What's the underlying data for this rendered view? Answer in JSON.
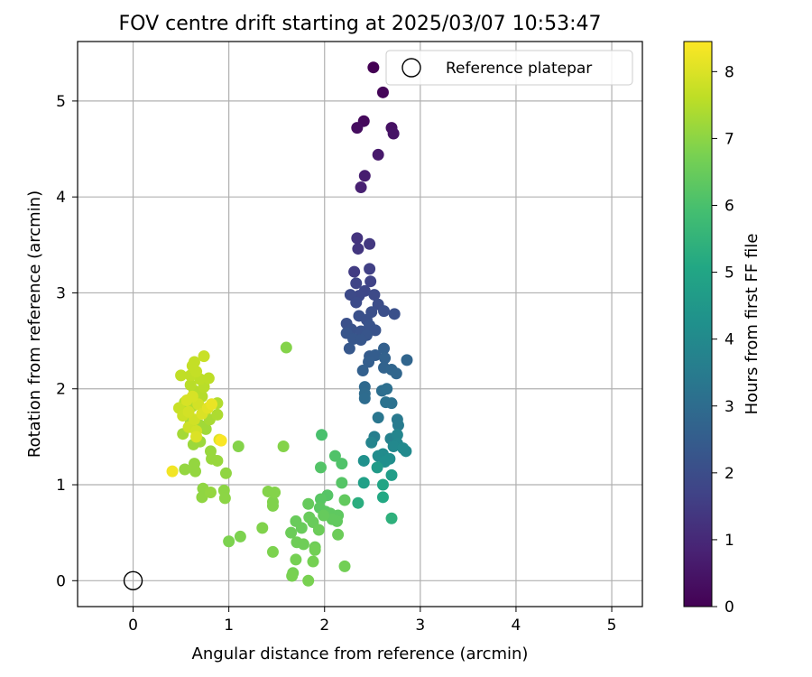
{
  "chart_data": {
    "type": "scatter",
    "title": "FOV centre drift starting at 2025/03/07 10:53:47",
    "xlabel": "Angular distance from reference (arcmin)",
    "ylabel": "Rotation from reference (arcmin)",
    "xlim": [
      -0.58,
      5.32
    ],
    "ylim": [
      -0.27,
      5.62
    ],
    "xticks": [
      0,
      1,
      2,
      3,
      4,
      5
    ],
    "yticks": [
      0,
      1,
      2,
      3,
      4,
      5
    ],
    "grid": true,
    "legend": {
      "location": "top-right",
      "label": "Reference platepar",
      "marker": "open-circle"
    },
    "reference_point": {
      "x": 0,
      "y": 0
    },
    "colorbar": {
      "label": "Hours from first FF file",
      "colormap": "viridis",
      "range": [
        0,
        8.45
      ],
      "ticks": [
        0,
        1,
        2,
        3,
        4,
        5,
        6,
        7,
        8
      ]
    },
    "series": [
      {
        "points": [
          {
            "x": 2.51,
            "y": 5.35,
            "c": 0.0
          },
          {
            "x": 2.61,
            "y": 5.09,
            "c": 0.1
          },
          {
            "x": 2.41,
            "y": 4.79,
            "c": 0.2
          },
          {
            "x": 2.34,
            "y": 4.72,
            "c": 0.3
          },
          {
            "x": 2.7,
            "y": 4.72,
            "c": 0.4
          },
          {
            "x": 2.72,
            "y": 4.66,
            "c": 0.45
          },
          {
            "x": 2.56,
            "y": 4.44,
            "c": 0.6
          },
          {
            "x": 2.42,
            "y": 4.22,
            "c": 0.7
          },
          {
            "x": 2.38,
            "y": 4.1,
            "c": 0.8
          },
          {
            "x": 2.34,
            "y": 3.57,
            "c": 1.3
          },
          {
            "x": 2.35,
            "y": 3.46,
            "c": 1.35
          },
          {
            "x": 2.47,
            "y": 3.51,
            "c": 1.4
          },
          {
            "x": 2.31,
            "y": 3.22,
            "c": 1.5
          },
          {
            "x": 2.47,
            "y": 3.25,
            "c": 1.6
          },
          {
            "x": 2.48,
            "y": 3.12,
            "c": 1.7
          },
          {
            "x": 2.33,
            "y": 3.1,
            "c": 1.75
          },
          {
            "x": 2.42,
            "y": 3.02,
            "c": 1.8
          },
          {
            "x": 2.36,
            "y": 2.97,
            "c": 1.85
          },
          {
            "x": 2.27,
            "y": 2.98,
            "c": 1.9
          },
          {
            "x": 2.52,
            "y": 2.98,
            "c": 1.9
          },
          {
            "x": 2.33,
            "y": 2.9,
            "c": 1.95
          },
          {
            "x": 2.56,
            "y": 2.88,
            "c": 2.0
          },
          {
            "x": 2.62,
            "y": 2.81,
            "c": 2.05
          },
          {
            "x": 2.73,
            "y": 2.78,
            "c": 2.1
          },
          {
            "x": 2.49,
            "y": 2.8,
            "c": 2.05
          },
          {
            "x": 2.36,
            "y": 2.76,
            "c": 2.1
          },
          {
            "x": 2.23,
            "y": 2.68,
            "c": 2.1
          },
          {
            "x": 2.44,
            "y": 2.72,
            "c": 2.1
          },
          {
            "x": 2.28,
            "y": 2.62,
            "c": 2.15
          },
          {
            "x": 2.38,
            "y": 2.6,
            "c": 2.2
          },
          {
            "x": 2.47,
            "y": 2.66,
            "c": 2.2
          },
          {
            "x": 2.53,
            "y": 2.61,
            "c": 2.2
          },
          {
            "x": 2.44,
            "y": 2.56,
            "c": 2.25
          },
          {
            "x": 2.23,
            "y": 2.58,
            "c": 2.25
          },
          {
            "x": 2.3,
            "y": 2.52,
            "c": 2.3
          },
          {
            "x": 2.38,
            "y": 2.51,
            "c": 2.3
          },
          {
            "x": 2.26,
            "y": 2.42,
            "c": 2.35
          },
          {
            "x": 2.47,
            "y": 2.34,
            "c": 2.45
          },
          {
            "x": 2.53,
            "y": 2.35,
            "c": 2.5
          },
          {
            "x": 2.46,
            "y": 2.28,
            "c": 2.55
          },
          {
            "x": 2.4,
            "y": 2.19,
            "c": 2.6
          },
          {
            "x": 2.62,
            "y": 2.42,
            "c": 2.6
          },
          {
            "x": 2.63,
            "y": 2.32,
            "c": 2.65
          },
          {
            "x": 2.62,
            "y": 2.22,
            "c": 2.7
          },
          {
            "x": 2.86,
            "y": 2.3,
            "c": 2.75
          },
          {
            "x": 2.7,
            "y": 2.2,
            "c": 2.75
          },
          {
            "x": 2.75,
            "y": 2.16,
            "c": 2.8
          },
          {
            "x": 2.42,
            "y": 2.02,
            "c": 2.9
          },
          {
            "x": 2.42,
            "y": 1.95,
            "c": 2.95
          },
          {
            "x": 2.42,
            "y": 1.9,
            "c": 3.0
          },
          {
            "x": 2.6,
            "y": 1.98,
            "c": 3.05
          },
          {
            "x": 2.65,
            "y": 2.0,
            "c": 3.1
          },
          {
            "x": 2.7,
            "y": 1.85,
            "c": 3.15
          },
          {
            "x": 2.64,
            "y": 1.86,
            "c": 3.2
          },
          {
            "x": 2.56,
            "y": 1.7,
            "c": 3.3
          },
          {
            "x": 2.76,
            "y": 1.68,
            "c": 3.4
          },
          {
            "x": 2.77,
            "y": 1.62,
            "c": 3.5
          },
          {
            "x": 2.52,
            "y": 1.5,
            "c": 3.6
          },
          {
            "x": 2.69,
            "y": 1.48,
            "c": 3.7
          },
          {
            "x": 2.49,
            "y": 1.44,
            "c": 3.8
          },
          {
            "x": 2.76,
            "y": 1.52,
            "c": 3.85
          },
          {
            "x": 2.76,
            "y": 1.43,
            "c": 3.9
          },
          {
            "x": 2.72,
            "y": 1.4,
            "c": 3.95
          },
          {
            "x": 2.82,
            "y": 1.38,
            "c": 4.0
          },
          {
            "x": 2.85,
            "y": 1.35,
            "c": 4.0
          },
          {
            "x": 2.61,
            "y": 1.32,
            "c": 4.05
          },
          {
            "x": 2.56,
            "y": 1.3,
            "c": 4.1
          },
          {
            "x": 2.68,
            "y": 1.27,
            "c": 4.15
          },
          {
            "x": 2.63,
            "y": 1.24,
            "c": 4.2
          },
          {
            "x": 2.41,
            "y": 1.25,
            "c": 4.25
          },
          {
            "x": 2.55,
            "y": 1.18,
            "c": 4.6
          },
          {
            "x": 2.7,
            "y": 1.1,
            "c": 4.7
          },
          {
            "x": 2.41,
            "y": 1.02,
            "c": 4.8
          },
          {
            "x": 2.61,
            "y": 1.0,
            "c": 5.0
          },
          {
            "x": 2.61,
            "y": 0.87,
            "c": 5.1
          },
          {
            "x": 2.35,
            "y": 0.81,
            "c": 5.3
          },
          {
            "x": 2.7,
            "y": 0.65,
            "c": 5.4
          },
          {
            "x": 1.97,
            "y": 1.52,
            "c": 6.0
          },
          {
            "x": 2.11,
            "y": 1.3,
            "c": 6.1
          },
          {
            "x": 2.18,
            "y": 1.22,
            "c": 6.1
          },
          {
            "x": 1.96,
            "y": 1.18,
            "c": 6.15
          },
          {
            "x": 2.18,
            "y": 1.02,
            "c": 6.2
          },
          {
            "x": 2.03,
            "y": 0.89,
            "c": 6.2
          },
          {
            "x": 1.96,
            "y": 0.85,
            "c": 6.25
          },
          {
            "x": 1.95,
            "y": 0.76,
            "c": 6.3
          },
          {
            "x": 2.01,
            "y": 0.72,
            "c": 6.3
          },
          {
            "x": 2.06,
            "y": 0.7,
            "c": 6.35
          },
          {
            "x": 2.14,
            "y": 0.68,
            "c": 6.35
          },
          {
            "x": 2.21,
            "y": 0.84,
            "c": 6.4
          },
          {
            "x": 2.13,
            "y": 0.62,
            "c": 6.4
          },
          {
            "x": 2.08,
            "y": 0.64,
            "c": 6.4
          },
          {
            "x": 1.99,
            "y": 0.68,
            "c": 6.45
          },
          {
            "x": 1.83,
            "y": 0.8,
            "c": 6.45
          },
          {
            "x": 1.88,
            "y": 0.61,
            "c": 6.5
          },
          {
            "x": 1.76,
            "y": 0.55,
            "c": 6.5
          },
          {
            "x": 1.7,
            "y": 0.62,
            "c": 6.5
          },
          {
            "x": 1.84,
            "y": 0.66,
            "c": 6.5
          },
          {
            "x": 1.94,
            "y": 0.53,
            "c": 6.55
          },
          {
            "x": 2.14,
            "y": 0.48,
            "c": 6.55
          },
          {
            "x": 1.65,
            "y": 0.5,
            "c": 6.55
          },
          {
            "x": 1.71,
            "y": 0.4,
            "c": 6.6
          },
          {
            "x": 1.78,
            "y": 0.38,
            "c": 6.6
          },
          {
            "x": 1.9,
            "y": 0.35,
            "c": 6.6
          },
          {
            "x": 1.9,
            "y": 0.32,
            "c": 6.65
          },
          {
            "x": 2.21,
            "y": 0.15,
            "c": 6.65
          },
          {
            "x": 1.88,
            "y": 0.2,
            "c": 6.7
          },
          {
            "x": 1.7,
            "y": 0.22,
            "c": 6.7
          },
          {
            "x": 1.67,
            "y": 0.08,
            "c": 6.7
          },
          {
            "x": 1.66,
            "y": 0.05,
            "c": 6.75
          },
          {
            "x": 1.83,
            "y": 0.0,
            "c": 6.75
          },
          {
            "x": 1.46,
            "y": 0.3,
            "c": 6.8
          },
          {
            "x": 1.12,
            "y": 0.46,
            "c": 6.8
          },
          {
            "x": 1.0,
            "y": 0.41,
            "c": 6.8
          },
          {
            "x": 1.35,
            "y": 0.55,
            "c": 6.85
          },
          {
            "x": 1.46,
            "y": 0.82,
            "c": 6.85
          },
          {
            "x": 1.46,
            "y": 0.78,
            "c": 6.85
          },
          {
            "x": 1.41,
            "y": 0.93,
            "c": 6.9
          },
          {
            "x": 1.48,
            "y": 0.92,
            "c": 6.9
          },
          {
            "x": 1.6,
            "y": 2.43,
            "c": 6.9
          },
          {
            "x": 1.57,
            "y": 1.4,
            "c": 6.9
          },
          {
            "x": 1.1,
            "y": 1.4,
            "c": 6.9
          },
          {
            "x": 0.95,
            "y": 0.94,
            "c": 7.0
          },
          {
            "x": 0.96,
            "y": 0.86,
            "c": 7.0
          },
          {
            "x": 0.97,
            "y": 1.12,
            "c": 7.05
          },
          {
            "x": 0.73,
            "y": 0.96,
            "c": 7.05
          },
          {
            "x": 0.72,
            "y": 0.87,
            "c": 7.05
          },
          {
            "x": 0.81,
            "y": 0.92,
            "c": 7.1
          },
          {
            "x": 0.64,
            "y": 1.22,
            "c": 7.1
          },
          {
            "x": 0.65,
            "y": 1.14,
            "c": 7.1
          },
          {
            "x": 0.54,
            "y": 1.16,
            "c": 7.1
          },
          {
            "x": 0.88,
            "y": 1.25,
            "c": 7.15
          },
          {
            "x": 0.82,
            "y": 1.27,
            "c": 7.15
          },
          {
            "x": 0.81,
            "y": 1.35,
            "c": 7.15
          },
          {
            "x": 0.63,
            "y": 1.42,
            "c": 7.2
          },
          {
            "x": 0.7,
            "y": 1.45,
            "c": 7.2
          },
          {
            "x": 0.76,
            "y": 1.58,
            "c": 7.25
          },
          {
            "x": 0.7,
            "y": 1.62,
            "c": 7.25
          },
          {
            "x": 0.6,
            "y": 1.64,
            "c": 7.3
          },
          {
            "x": 0.52,
            "y": 1.53,
            "c": 7.3
          },
          {
            "x": 0.59,
            "y": 1.7,
            "c": 7.35
          },
          {
            "x": 0.8,
            "y": 1.68,
            "c": 7.35
          },
          {
            "x": 0.88,
            "y": 1.73,
            "c": 7.4
          },
          {
            "x": 0.76,
            "y": 1.78,
            "c": 7.4
          },
          {
            "x": 0.62,
            "y": 1.82,
            "c": 7.45
          },
          {
            "x": 0.54,
            "y": 1.86,
            "c": 7.45
          },
          {
            "x": 0.88,
            "y": 1.85,
            "c": 7.45
          },
          {
            "x": 0.72,
            "y": 1.92,
            "c": 7.5
          },
          {
            "x": 0.64,
            "y": 1.98,
            "c": 7.5
          },
          {
            "x": 0.74,
            "y": 2.02,
            "c": 7.55
          },
          {
            "x": 0.6,
            "y": 2.04,
            "c": 7.55
          },
          {
            "x": 0.7,
            "y": 2.1,
            "c": 7.6
          },
          {
            "x": 0.79,
            "y": 2.11,
            "c": 7.6
          },
          {
            "x": 0.6,
            "y": 2.14,
            "c": 7.65
          },
          {
            "x": 0.5,
            "y": 2.14,
            "c": 7.65
          },
          {
            "x": 0.66,
            "y": 2.18,
            "c": 7.7
          },
          {
            "x": 0.62,
            "y": 2.24,
            "c": 7.7
          },
          {
            "x": 0.64,
            "y": 2.28,
            "c": 7.7
          },
          {
            "x": 0.74,
            "y": 2.34,
            "c": 7.75
          },
          {
            "x": 0.48,
            "y": 1.8,
            "c": 7.75
          },
          {
            "x": 0.52,
            "y": 1.72,
            "c": 7.8
          },
          {
            "x": 0.58,
            "y": 1.6,
            "c": 7.8
          },
          {
            "x": 0.66,
            "y": 1.56,
            "c": 7.85
          },
          {
            "x": 0.64,
            "y": 1.68,
            "c": 7.85
          },
          {
            "x": 0.58,
            "y": 1.76,
            "c": 7.9
          },
          {
            "x": 0.68,
            "y": 1.84,
            "c": 7.9
          },
          {
            "x": 0.62,
            "y": 1.92,
            "c": 7.95
          },
          {
            "x": 0.56,
            "y": 1.88,
            "c": 7.95
          },
          {
            "x": 0.72,
            "y": 1.74,
            "c": 8.0
          },
          {
            "x": 0.66,
            "y": 1.5,
            "c": 8.0
          },
          {
            "x": 0.9,
            "y": 1.47,
            "c": 8.05
          },
          {
            "x": 0.78,
            "y": 1.8,
            "c": 8.1
          },
          {
            "x": 0.82,
            "y": 1.84,
            "c": 8.2
          },
          {
            "x": 0.41,
            "y": 1.14,
            "c": 8.3
          },
          {
            "x": 0.92,
            "y": 1.46,
            "c": 8.4
          }
        ]
      }
    ]
  }
}
